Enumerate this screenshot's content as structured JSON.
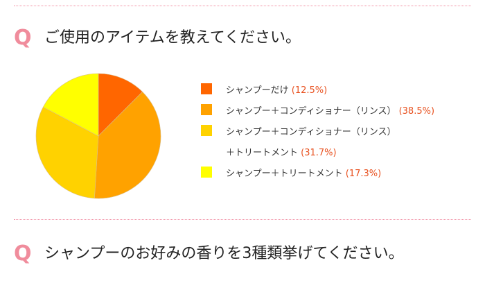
{
  "q1": {
    "mark": "Q",
    "text": "ご使用のアイテムを教えてください。"
  },
  "q2": {
    "mark": "Q",
    "text": "シャンプーのお好みの香りを3種類挙げてください。"
  },
  "chart_data": {
    "type": "pie",
    "title": "",
    "categories": [
      "シャンプーだけ",
      "シャンプー＋コンディショナー（リンス）",
      "シャンプー＋コンディショナー（リンス）＋トリートメント",
      "シャンプー＋トリートメント"
    ],
    "values": [
      12.5,
      38.5,
      31.7,
      17.3
    ],
    "colors": [
      "#ff6600",
      "#ffa200",
      "#ffd200",
      "#ffff00"
    ],
    "legend_placement": "right",
    "legend": [
      {
        "label": "シャンプーだけ",
        "pct": "(12.5%)",
        "color": "#ff6600"
      },
      {
        "label": "シャンプー＋コンディショナー（リンス）",
        "pct": "(38.5%)",
        "color": "#ffa200"
      },
      {
        "label": "シャンプー＋コンディショナー（リンス）",
        "label2": "＋トリートメント",
        "pct": "(31.7%)",
        "color": "#ffd200"
      },
      {
        "label": "シャンプー＋トリートメント",
        "pct": "(17.3%)",
        "color": "#ffff00"
      }
    ]
  }
}
